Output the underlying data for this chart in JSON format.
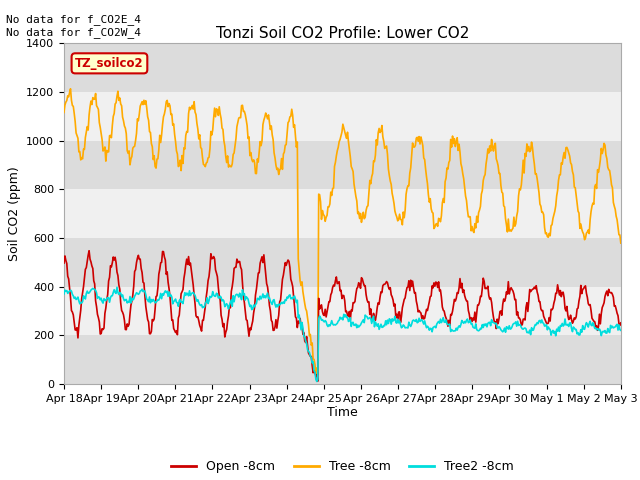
{
  "title": "Tonzi Soil CO2 Profile: Lower CO2",
  "xlabel": "Time",
  "ylabel": "Soil CO2 (ppm)",
  "ylim": [
    0,
    1400
  ],
  "yticks": [
    0,
    200,
    400,
    600,
    800,
    1000,
    1200,
    1400
  ],
  "xtick_labels": [
    "Apr 18",
    "Apr 19",
    "Apr 20",
    "Apr 21",
    "Apr 22",
    "Apr 23",
    "Apr 24",
    "Apr 25",
    "Apr 26",
    "Apr 27",
    "Apr 28",
    "Apr 29",
    "Apr 30",
    "May 1",
    "May 2",
    "May 3"
  ],
  "annotation_text": "No data for f_CO2E_4\nNo data for f_CO2W_4",
  "legend_box_text": "TZ_soilco2",
  "legend_box_color": "#ffffcc",
  "legend_box_edge": "#cc0000",
  "line_colors": {
    "open": "#cc0000",
    "tree": "#ffaa00",
    "tree2": "#00dddd"
  },
  "line_labels": {
    "open": "Open -8cm",
    "tree": "Tree -8cm",
    "tree2": "Tree2 -8cm"
  },
  "background_color": "#ffffff",
  "plot_bg_color": "#f0f0f0",
  "band_light": "#f0f0f0",
  "band_dark": "#dcdcdc",
  "band_ranges": [
    [
      0,
      200
    ],
    [
      200,
      400
    ],
    [
      400,
      600
    ],
    [
      600,
      800
    ],
    [
      800,
      1000
    ],
    [
      1000,
      1200
    ],
    [
      1200,
      1400
    ]
  ],
  "figsize": [
    6.4,
    4.8
  ],
  "dpi": 100
}
